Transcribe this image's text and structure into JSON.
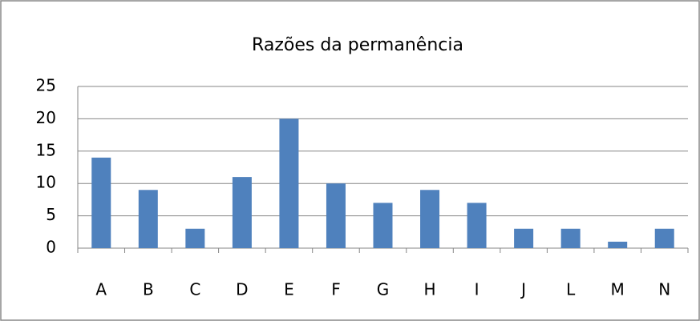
{
  "chart_data": {
    "type": "bar",
    "title": "Razões da permanência",
    "categories": [
      "A",
      "B",
      "C",
      "D",
      "E",
      "F",
      "G",
      "H",
      "I",
      "J",
      "L",
      "M",
      "N"
    ],
    "values": [
      14,
      9,
      3,
      11,
      20,
      10,
      7,
      9,
      7,
      3,
      3,
      1,
      3
    ],
    "color": "#4f81bd",
    "ylim": [
      0,
      25
    ],
    "yticks": [
      0,
      5,
      10,
      15,
      20,
      25
    ],
    "grid": true
  }
}
